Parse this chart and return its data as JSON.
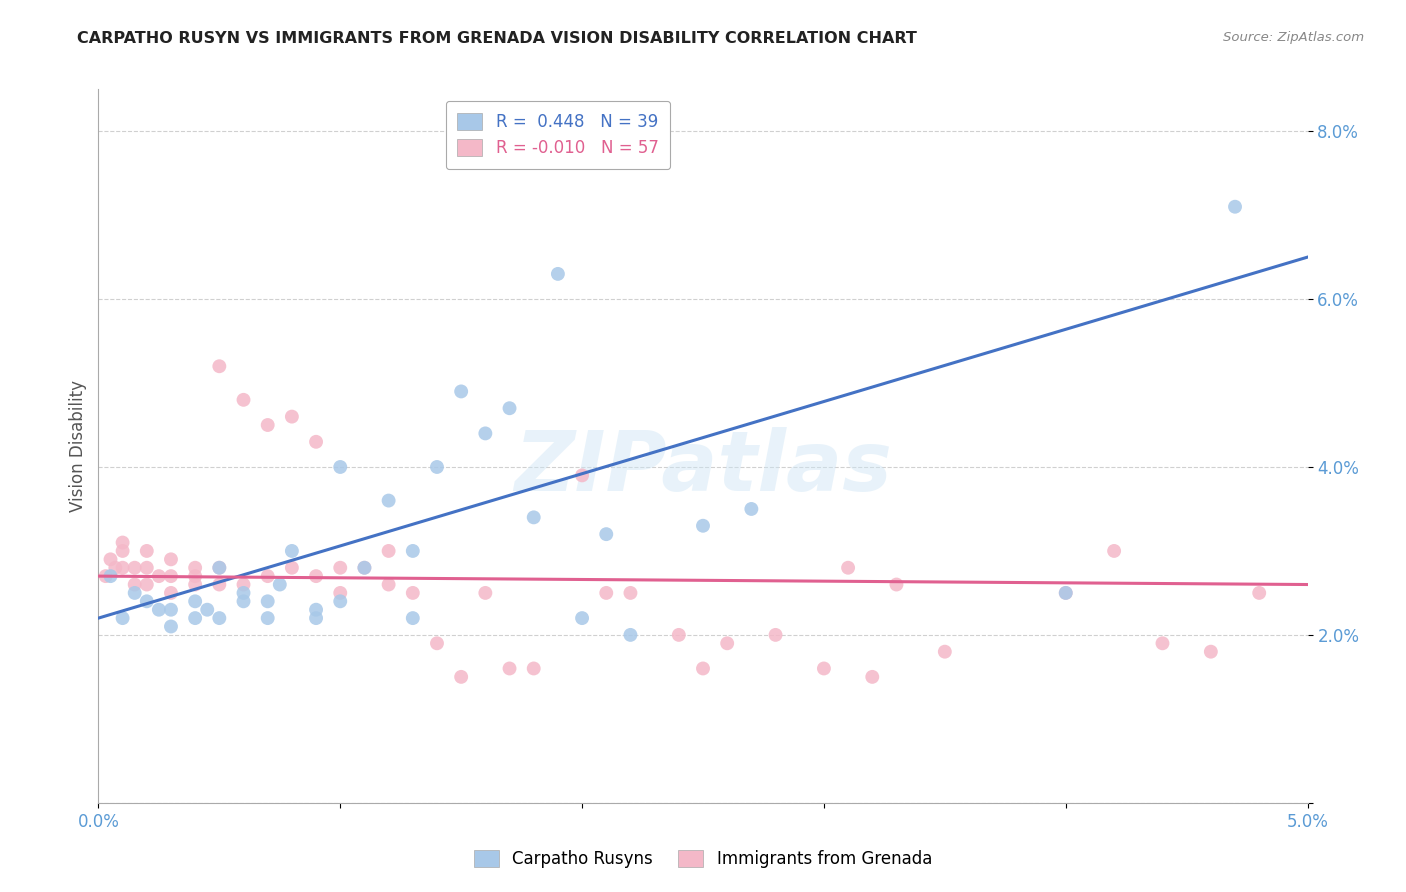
{
  "title": "CARPATHO RUSYN VS IMMIGRANTS FROM GRENADA VISION DISABILITY CORRELATION CHART",
  "source": "Source: ZipAtlas.com",
  "ylabel": "Vision Disability",
  "x_min": 0.0,
  "x_max": 0.05,
  "y_min": 0.0,
  "y_max": 0.085,
  "x_ticks": [
    0.0,
    0.01,
    0.02,
    0.03,
    0.04,
    0.05
  ],
  "x_tick_labels": [
    "0.0%",
    "",
    "",
    "",
    "",
    "5.0%"
  ],
  "y_ticks": [
    0.0,
    0.02,
    0.04,
    0.06,
    0.08
  ],
  "y_tick_labels": [
    "",
    "2.0%",
    "4.0%",
    "6.0%",
    "8.0%"
  ],
  "legend_blue_r": "0.448",
  "legend_blue_n": "39",
  "legend_pink_r": "-0.010",
  "legend_pink_n": "57",
  "legend_blue_label": "Carpatho Rusyns",
  "legend_pink_label": "Immigrants from Grenada",
  "blue_color": "#a8c8e8",
  "pink_color": "#f4b8c8",
  "line_blue_color": "#4472c4",
  "line_pink_color": "#e06090",
  "tick_color": "#5b9bd5",
  "watermark": "ZIPatlas",
  "blue_scatter_x": [
    0.0005,
    0.001,
    0.0015,
    0.002,
    0.0025,
    0.003,
    0.003,
    0.004,
    0.004,
    0.0045,
    0.005,
    0.005,
    0.006,
    0.006,
    0.007,
    0.007,
    0.0075,
    0.008,
    0.009,
    0.009,
    0.01,
    0.01,
    0.011,
    0.012,
    0.013,
    0.013,
    0.014,
    0.015,
    0.016,
    0.017,
    0.018,
    0.019,
    0.02,
    0.021,
    0.022,
    0.025,
    0.027,
    0.04,
    0.047
  ],
  "blue_scatter_y": [
    0.027,
    0.022,
    0.025,
    0.024,
    0.023,
    0.023,
    0.021,
    0.022,
    0.024,
    0.023,
    0.022,
    0.028,
    0.024,
    0.025,
    0.024,
    0.022,
    0.026,
    0.03,
    0.022,
    0.023,
    0.024,
    0.04,
    0.028,
    0.036,
    0.022,
    0.03,
    0.04,
    0.049,
    0.044,
    0.047,
    0.034,
    0.063,
    0.022,
    0.032,
    0.02,
    0.033,
    0.035,
    0.025,
    0.071
  ],
  "pink_scatter_x": [
    0.0003,
    0.0005,
    0.0007,
    0.001,
    0.001,
    0.001,
    0.0015,
    0.0015,
    0.002,
    0.002,
    0.002,
    0.0025,
    0.003,
    0.003,
    0.003,
    0.004,
    0.004,
    0.004,
    0.005,
    0.005,
    0.005,
    0.006,
    0.006,
    0.007,
    0.007,
    0.008,
    0.008,
    0.009,
    0.009,
    0.01,
    0.01,
    0.011,
    0.012,
    0.012,
    0.013,
    0.014,
    0.015,
    0.016,
    0.017,
    0.018,
    0.02,
    0.021,
    0.022,
    0.024,
    0.025,
    0.026,
    0.028,
    0.03,
    0.031,
    0.032,
    0.033,
    0.035,
    0.04,
    0.042,
    0.044,
    0.046,
    0.048
  ],
  "pink_scatter_y": [
    0.027,
    0.029,
    0.028,
    0.028,
    0.03,
    0.031,
    0.026,
    0.028,
    0.026,
    0.028,
    0.03,
    0.027,
    0.025,
    0.027,
    0.029,
    0.026,
    0.027,
    0.028,
    0.026,
    0.028,
    0.052,
    0.026,
    0.048,
    0.027,
    0.045,
    0.028,
    0.046,
    0.027,
    0.043,
    0.025,
    0.028,
    0.028,
    0.026,
    0.03,
    0.025,
    0.019,
    0.015,
    0.025,
    0.016,
    0.016,
    0.039,
    0.025,
    0.025,
    0.02,
    0.016,
    0.019,
    0.02,
    0.016,
    0.028,
    0.015,
    0.026,
    0.018,
    0.025,
    0.03,
    0.019,
    0.018,
    0.025
  ],
  "blue_line_x": [
    0.0,
    0.05
  ],
  "blue_line_y": [
    0.022,
    0.065
  ],
  "pink_line_x": [
    0.0,
    0.05
  ],
  "pink_line_y": [
    0.027,
    0.026
  ]
}
